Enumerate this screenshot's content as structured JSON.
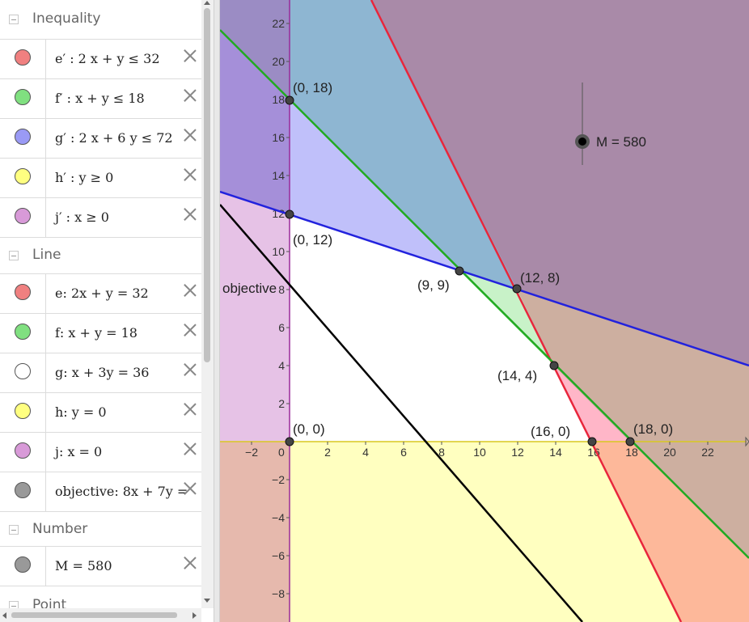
{
  "algebra": {
    "groups": [
      {
        "title": "Inequality",
        "items": [
          {
            "color": "#f08080",
            "text": "e′ :  2 x + y ≤ 32"
          },
          {
            "color": "#80e080",
            "text": "f′ :  x + y ≤ 18"
          },
          {
            "color": "#9a9af5",
            "text": "g′ :  2 x + 6 y ≤ 72"
          },
          {
            "color": "#ffff80",
            "text": "h′ :  y ≥ 0"
          },
          {
            "color": "#d89ad8",
            "text": "j′ : x ≥ 0"
          }
        ]
      },
      {
        "title": "Line",
        "items": [
          {
            "color": "#f08080",
            "text": "e: 2x + y = 32"
          },
          {
            "color": "#80e080",
            "text": "f: x + y = 18"
          },
          {
            "color": "#ffffff",
            "text": "g: x + 3y = 36"
          },
          {
            "color": "#ffff80",
            "text": "h: y = 0"
          },
          {
            "color": "#d89ad8",
            "text": "j: x = 0"
          },
          {
            "color": "#999999",
            "text": "objective: 8x + 7y ="
          }
        ]
      },
      {
        "title": "Number",
        "items": [
          {
            "color": "#999999",
            "text": "M = 580"
          }
        ]
      },
      {
        "title": "Point",
        "items": []
      }
    ]
  },
  "graphics": {
    "x_ticks": [
      "−2",
      "0",
      "2",
      "4",
      "6",
      "8",
      "10",
      "12",
      "14",
      "16",
      "18",
      "20",
      "22"
    ],
    "y_ticks": [
      "22",
      "20",
      "18",
      "16",
      "14",
      "12",
      "10",
      "8",
      "6",
      "4",
      "2",
      "−2",
      "−4",
      "−6",
      "−8"
    ],
    "points": [
      {
        "label": "(0, 18)"
      },
      {
        "label": "(0, 12)"
      },
      {
        "label": "(9, 9)"
      },
      {
        "label": "(12, 8)"
      },
      {
        "label": "(14, 4)"
      },
      {
        "label": "(0, 0)"
      },
      {
        "label": "(16, 0)"
      },
      {
        "label": "(18, 0)"
      }
    ],
    "objective_label": "objective",
    "slider_label": "M = 580",
    "colors": {
      "red_line": "#e8263c",
      "green_line": "#22aa22",
      "blue_line": "#2222dd",
      "black_line": "#000000",
      "x_axis": "#d8c820",
      "y_axis": "#9a2a9a"
    }
  }
}
